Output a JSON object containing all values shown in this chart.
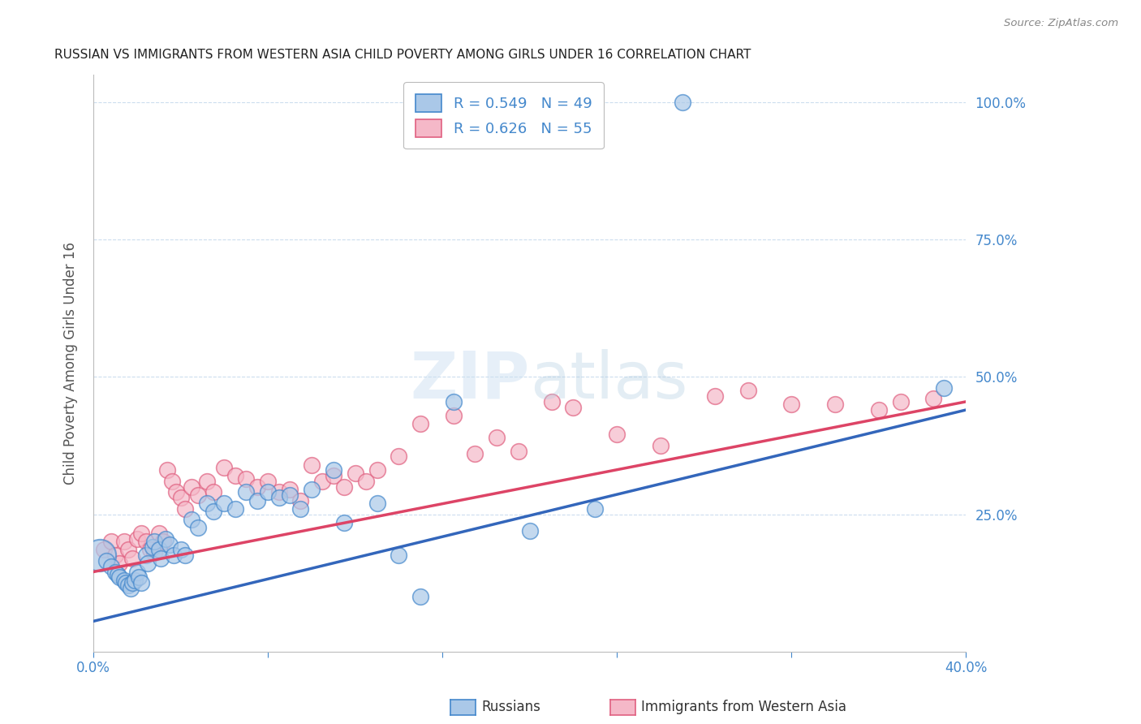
{
  "title": "RUSSIAN VS IMMIGRANTS FROM WESTERN ASIA CHILD POVERTY AMONG GIRLS UNDER 16 CORRELATION CHART",
  "source": "Source: ZipAtlas.com",
  "ylabel": "Child Poverty Among Girls Under 16",
  "xmin": 0.0,
  "xmax": 0.4,
  "ymin": 0.0,
  "ymax": 1.05,
  "blue_R": 0.549,
  "blue_N": 49,
  "pink_R": 0.626,
  "pink_N": 55,
  "blue_fill": "#aac8e8",
  "pink_fill": "#f5b8c8",
  "blue_edge": "#4488cc",
  "pink_edge": "#e06080",
  "blue_line_color": "#3366bb",
  "pink_line_color": "#dd4466",
  "axis_color": "#4488cc",
  "grid_color": "#ccddee",
  "title_color": "#222222",
  "source_color": "#888888",
  "ylabel_color": "#555555",
  "blue_x": [
    0.003,
    0.006,
    0.008,
    0.01,
    0.011,
    0.012,
    0.014,
    0.015,
    0.016,
    0.017,
    0.018,
    0.019,
    0.02,
    0.021,
    0.022,
    0.024,
    0.025,
    0.027,
    0.028,
    0.03,
    0.031,
    0.033,
    0.035,
    0.037,
    0.04,
    0.042,
    0.045,
    0.048,
    0.052,
    0.055,
    0.06,
    0.065,
    0.07,
    0.075,
    0.08,
    0.085,
    0.09,
    0.095,
    0.1,
    0.11,
    0.115,
    0.13,
    0.14,
    0.15,
    0.165,
    0.2,
    0.23,
    0.27,
    0.39
  ],
  "blue_y": [
    0.175,
    0.165,
    0.155,
    0.145,
    0.14,
    0.135,
    0.13,
    0.125,
    0.12,
    0.115,
    0.125,
    0.13,
    0.145,
    0.135,
    0.125,
    0.175,
    0.16,
    0.19,
    0.2,
    0.185,
    0.17,
    0.205,
    0.195,
    0.175,
    0.185,
    0.175,
    0.24,
    0.225,
    0.27,
    0.255,
    0.27,
    0.26,
    0.29,
    0.275,
    0.29,
    0.28,
    0.285,
    0.26,
    0.295,
    0.33,
    0.235,
    0.27,
    0.175,
    0.1,
    0.455,
    0.22,
    0.26,
    1.0,
    0.48
  ],
  "blue_size": [
    800,
    200,
    200,
    200,
    200,
    200,
    200,
    200,
    200,
    200,
    200,
    200,
    200,
    200,
    200,
    200,
    200,
    200,
    200,
    200,
    200,
    200,
    200,
    200,
    200,
    200,
    200,
    200,
    200,
    200,
    200,
    200,
    200,
    200,
    200,
    200,
    200,
    200,
    200,
    200,
    200,
    200,
    200,
    200,
    200,
    200,
    200,
    200,
    200
  ],
  "pink_x": [
    0.005,
    0.008,
    0.01,
    0.012,
    0.014,
    0.016,
    0.018,
    0.02,
    0.022,
    0.024,
    0.026,
    0.028,
    0.03,
    0.032,
    0.034,
    0.036,
    0.038,
    0.04,
    0.042,
    0.045,
    0.048,
    0.052,
    0.055,
    0.06,
    0.065,
    0.07,
    0.075,
    0.08,
    0.085,
    0.09,
    0.095,
    0.1,
    0.105,
    0.11,
    0.115,
    0.12,
    0.125,
    0.13,
    0.14,
    0.15,
    0.165,
    0.175,
    0.185,
    0.195,
    0.21,
    0.22,
    0.24,
    0.26,
    0.285,
    0.3,
    0.32,
    0.34,
    0.36,
    0.37,
    0.385
  ],
  "pink_y": [
    0.185,
    0.2,
    0.175,
    0.16,
    0.2,
    0.185,
    0.17,
    0.205,
    0.215,
    0.2,
    0.185,
    0.18,
    0.215,
    0.2,
    0.33,
    0.31,
    0.29,
    0.28,
    0.26,
    0.3,
    0.285,
    0.31,
    0.29,
    0.335,
    0.32,
    0.315,
    0.3,
    0.31,
    0.29,
    0.295,
    0.275,
    0.34,
    0.31,
    0.32,
    0.3,
    0.325,
    0.31,
    0.33,
    0.355,
    0.415,
    0.43,
    0.36,
    0.39,
    0.365,
    0.455,
    0.445,
    0.395,
    0.375,
    0.465,
    0.475,
    0.45,
    0.45,
    0.44,
    0.455,
    0.46
  ],
  "pink_size": [
    200,
    200,
    200,
    200,
    200,
    200,
    200,
    200,
    200,
    200,
    200,
    200,
    200,
    200,
    200,
    200,
    200,
    200,
    200,
    200,
    200,
    200,
    200,
    200,
    200,
    200,
    200,
    200,
    200,
    200,
    200,
    200,
    200,
    200,
    200,
    200,
    200,
    200,
    200,
    200,
    200,
    200,
    200,
    200,
    200,
    200,
    200,
    200,
    200,
    200,
    200,
    200,
    200,
    200,
    200
  ],
  "blue_line_x": [
    0.0,
    0.4
  ],
  "blue_line_y": [
    0.055,
    0.44
  ],
  "pink_line_x": [
    0.0,
    0.4
  ],
  "pink_line_y": [
    0.145,
    0.455
  ]
}
